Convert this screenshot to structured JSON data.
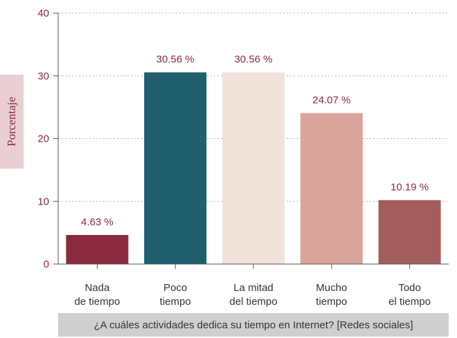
{
  "chart_data": {
    "type": "bar",
    "categories": [
      "Nada\nde tiempo",
      "Poco\ntiempo",
      "La mitad\ndel tiempo",
      "Mucho\ntiempo",
      "Todo\nel tiempo"
    ],
    "values": [
      4.63,
      30.56,
      30.56,
      24.07,
      10.19
    ],
    "data_labels": [
      "4.63 %",
      "30.56 %",
      "30.56 %",
      "24.07 %",
      "10.19 %"
    ],
    "bar_colors": [
      "#8b2a3e",
      "#1f5f6e",
      "#f1e3da",
      "#d9a59a",
      "#a45c5c"
    ],
    "title": "",
    "xlabel": "¿A cuáles actividades dedica su tiempo en Internet? [Redes sociales]",
    "ylabel": "Porcentaje",
    "ylim": [
      0,
      40
    ],
    "yticks": [
      0,
      10,
      20,
      30,
      40
    ],
    "grid": true,
    "legend": "none"
  }
}
